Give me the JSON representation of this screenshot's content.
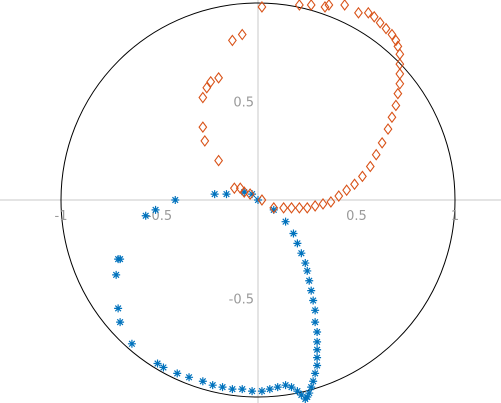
{
  "chart_data": {
    "type": "scatter",
    "title": "",
    "xlabel": "",
    "ylabel": "",
    "xlim": [
      -1.03,
      1.03
    ],
    "ylim": [
      -1.01,
      1.01
    ],
    "grid": false,
    "axes_through_origin": true,
    "unit_circle": true,
    "x_tick_labels": [
      {
        "value": -1,
        "label": "-1"
      },
      {
        "value": -0.5,
        "label": "-0.5"
      },
      {
        "value": 0.5,
        "label": "0.5"
      },
      {
        "value": 1,
        "label": "1"
      }
    ],
    "y_tick_labels": [
      {
        "value": 0.5,
        "label": "0.5"
      },
      {
        "value": -0.5,
        "label": "-0.5"
      }
    ],
    "colors": {
      "axis": "#c8c8c8",
      "circle": "#000000",
      "tick_text": "#9a9a9a",
      "series_1": "#0072bd",
      "series_2": "#d95319"
    },
    "series": [
      {
        "marker": "asterisk",
        "color": "#0072bd",
        "x": [
          -0.07,
          -0.03,
          0.0,
          0.08,
          0.14,
          0.18,
          0.2,
          0.22,
          0.24,
          0.25,
          0.26,
          0.27,
          0.28,
          0.29,
          0.29,
          0.3,
          0.3,
          0.3,
          0.3,
          0.3,
          0.29,
          0.28,
          0.27,
          0.26,
          0.25,
          0.24,
          0.22,
          0.2,
          0.17,
          0.14,
          0.1,
          0.06,
          0.02,
          -0.03,
          -0.08,
          -0.13,
          -0.18,
          -0.23,
          -0.28,
          -0.35,
          -0.41,
          -0.48,
          -0.51,
          -0.64,
          -0.7,
          -0.71,
          -0.72,
          -0.71,
          -0.7,
          -0.57,
          -0.52,
          -0.42,
          -0.22,
          -0.16
        ],
        "y": [
          0.04,
          0.03,
          0.0,
          -0.05,
          -0.11,
          -0.17,
          -0.22,
          -0.27,
          -0.32,
          -0.36,
          -0.41,
          -0.46,
          -0.51,
          -0.56,
          -0.62,
          -0.67,
          -0.72,
          -0.76,
          -0.8,
          -0.84,
          -0.88,
          -0.92,
          -0.95,
          -0.98,
          -1.0,
          -1.01,
          -0.99,
          -0.97,
          -0.95,
          -0.94,
          -0.95,
          -0.96,
          -0.97,
          -0.97,
          -0.96,
          -0.96,
          -0.95,
          -0.94,
          -0.92,
          -0.9,
          -0.88,
          -0.85,
          -0.83,
          -0.73,
          -0.62,
          -0.55,
          -0.38,
          -0.3,
          -0.3,
          -0.08,
          -0.05,
          0.0,
          0.03,
          0.03
        ]
      },
      {
        "marker": "diamond",
        "color": "#d95319",
        "x": [
          -0.09,
          -0.04,
          0.02,
          0.08,
          0.13,
          0.17,
          0.21,
          0.25,
          0.29,
          0.33,
          0.37,
          0.41,
          0.45,
          0.49,
          0.53,
          0.57,
          0.6,
          0.63,
          0.66,
          0.68,
          0.7,
          0.71,
          0.72,
          0.72,
          0.72,
          0.72,
          0.71,
          0.7,
          0.68,
          0.65,
          0.62,
          0.59,
          0.56,
          0.51,
          0.44,
          0.36,
          0.34,
          0.27,
          0.21,
          0.02,
          -0.08,
          -0.13,
          -0.2,
          -0.24,
          -0.26,
          -0.28,
          -0.28,
          -0.27,
          -0.2,
          -0.12,
          -0.07
        ],
        "y": [
          0.06,
          0.03,
          0.0,
          -0.04,
          -0.04,
          -0.04,
          -0.04,
          -0.04,
          -0.03,
          -0.02,
          -0.01,
          0.02,
          0.05,
          0.08,
          0.12,
          0.17,
          0.23,
          0.29,
          0.36,
          0.42,
          0.48,
          0.54,
          0.59,
          0.64,
          0.69,
          0.74,
          0.78,
          0.81,
          0.84,
          0.87,
          0.9,
          0.93,
          0.95,
          0.95,
          0.99,
          0.99,
          0.98,
          0.99,
          0.99,
          0.98,
          0.84,
          0.81,
          0.62,
          0.6,
          0.57,
          0.52,
          0.37,
          0.3,
          0.2,
          0.06,
          0.04
        ]
      }
    ]
  }
}
